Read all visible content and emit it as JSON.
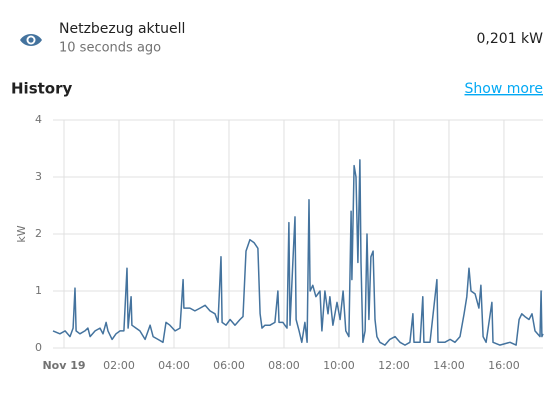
{
  "header": {
    "name": "Netzbezug aktuell",
    "time": "10 seconds ago",
    "state": "0,201 kW"
  },
  "history": {
    "title": "History",
    "link": "Show more"
  },
  "chart_data": {
    "type": "line",
    "y_label": "kW",
    "xlim": [
      -0.4,
      17.42
    ],
    "ylim": [
      0,
      4
    ],
    "xticks": [
      {
        "value": 0,
        "label": "Nov 19"
      },
      {
        "value": 2,
        "label": "02:00"
      },
      {
        "value": 4,
        "label": "04:00"
      },
      {
        "value": 6,
        "label": "06:00"
      },
      {
        "value": 8,
        "label": "08:00"
      },
      {
        "value": 10,
        "label": "10:00"
      },
      {
        "value": 12,
        "label": "12:00"
      },
      {
        "value": 14,
        "label": "14:00"
      },
      {
        "value": 16,
        "label": "16:00"
      }
    ],
    "yticks": [
      0,
      1,
      2,
      3,
      4
    ],
    "grid": true,
    "series": [
      {
        "name": "Netzbezug aktuell",
        "color": "#44739e",
        "x": [
          -0.4,
          -0.15,
          0.04,
          0.22,
          0.33,
          0.4,
          0.44,
          0.58,
          0.76,
          0.87,
          0.95,
          1.13,
          1.31,
          1.42,
          1.53,
          1.6,
          1.75,
          1.89,
          2.04,
          2.18,
          2.29,
          2.33,
          2.44,
          2.47,
          2.62,
          2.76,
          2.95,
          3.13,
          3.24,
          3.42,
          3.6,
          3.71,
          3.85,
          4.04,
          4.22,
          4.33,
          4.36,
          4.58,
          4.76,
          4.95,
          5.13,
          5.31,
          5.49,
          5.6,
          5.71,
          5.75,
          5.89,
          6.04,
          6.22,
          6.4,
          6.51,
          6.62,
          6.76,
          6.91,
          7.05,
          7.13,
          7.2,
          7.31,
          7.49,
          7.67,
          7.78,
          7.82,
          7.96,
          8.11,
          8.18,
          8.22,
          8.33,
          8.4,
          8.44,
          8.55,
          8.65,
          8.76,
          8.84,
          8.91,
          8.95,
          9.05,
          9.16,
          9.31,
          9.38,
          9.49,
          9.6,
          9.67,
          9.78,
          9.93,
          10.04,
          10.15,
          10.25,
          10.36,
          10.44,
          10.47,
          10.55,
          10.62,
          10.69,
          10.76,
          10.8,
          10.87,
          10.95,
          11.02,
          11.09,
          11.16,
          11.24,
          11.31,
          11.38,
          11.49,
          11.67,
          11.85,
          12.04,
          12.22,
          12.4,
          12.58,
          12.69,
          12.73,
          12.95,
          13.05,
          13.09,
          13.31,
          13.56,
          13.6,
          13.85,
          14.04,
          14.22,
          14.4,
          14.55,
          14.65,
          14.73,
          14.8,
          14.95,
          15.09,
          15.16,
          15.24,
          15.35,
          15.56,
          15.6,
          15.85,
          16.22,
          16.44,
          16.55,
          16.65,
          16.76,
          16.91,
          17.02,
          17.13,
          17.31,
          17.35,
          17.38,
          17.42
        ],
        "values": [
          0.3,
          0.25,
          0.3,
          0.2,
          0.35,
          1.05,
          0.3,
          0.25,
          0.3,
          0.35,
          0.2,
          0.3,
          0.35,
          0.25,
          0.45,
          0.3,
          0.15,
          0.25,
          0.3,
          0.3,
          1.4,
          0.35,
          0.9,
          0.4,
          0.35,
          0.3,
          0.15,
          0.4,
          0.2,
          0.15,
          0.1,
          0.45,
          0.4,
          0.3,
          0.35,
          1.2,
          0.7,
          0.7,
          0.65,
          0.7,
          0.75,
          0.65,
          0.6,
          0.45,
          1.6,
          0.45,
          0.4,
          0.5,
          0.4,
          0.5,
          0.55,
          1.7,
          1.9,
          1.85,
          1.75,
          0.6,
          0.35,
          0.4,
          0.4,
          0.45,
          1.0,
          0.45,
          0.45,
          0.35,
          2.2,
          0.4,
          1.6,
          2.3,
          0.5,
          0.3,
          0.1,
          0.45,
          0.1,
          2.6,
          1.0,
          1.1,
          0.9,
          1.0,
          0.3,
          1.0,
          0.6,
          0.9,
          0.4,
          0.8,
          0.5,
          1.0,
          0.3,
          0.2,
          2.4,
          1.2,
          3.2,
          3.0,
          1.5,
          3.3,
          1.5,
          0.1,
          0.3,
          2.0,
          0.5,
          1.6,
          1.7,
          0.5,
          0.2,
          0.1,
          0.05,
          0.15,
          0.2,
          0.1,
          0.05,
          0.1,
          0.6,
          0.1,
          0.1,
          0.9,
          0.1,
          0.1,
          1.2,
          0.1,
          0.1,
          0.15,
          0.1,
          0.2,
          0.6,
          0.9,
          1.4,
          1.0,
          0.95,
          0.7,
          1.1,
          0.2,
          0.1,
          0.8,
          0.1,
          0.05,
          0.1,
          0.05,
          0.5,
          0.6,
          0.55,
          0.5,
          0.6,
          0.3,
          0.2,
          1.0,
          0.2,
          0.25
        ]
      }
    ]
  }
}
